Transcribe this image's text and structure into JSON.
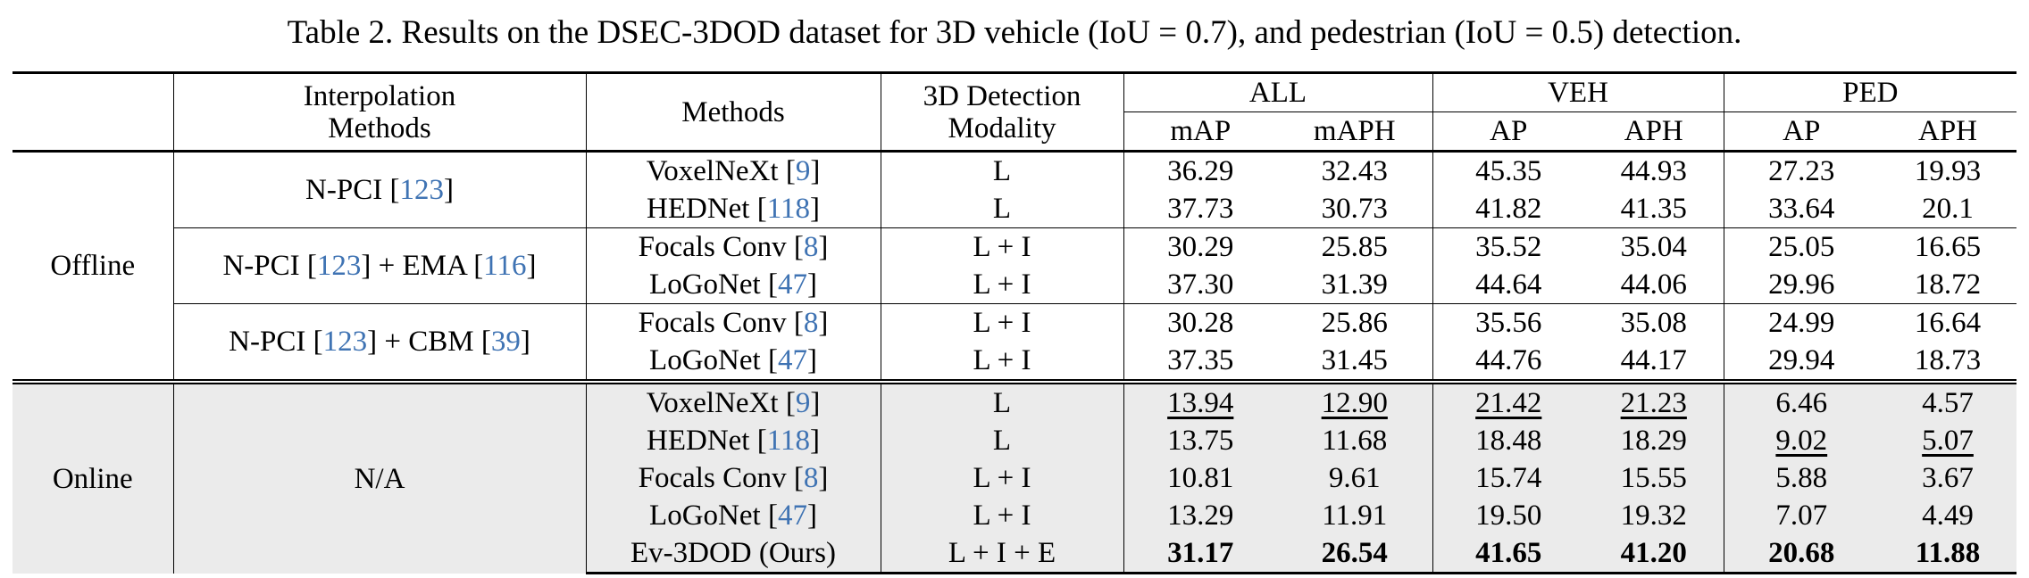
{
  "caption": "Table 2. Results on the DSEC-3DOD dataset for 3D vehicle (IoU = 0.7), and pedestrian (IoU = 0.5) detection.",
  "header": {
    "interp_line1": "Interpolation",
    "interp_line2": "Methods",
    "methods": "Methods",
    "modality_line1": "3D Detection",
    "modality_line2": "Modality",
    "all": "ALL",
    "veh": "VEH",
    "ped": "PED",
    "map": "mAP",
    "maph": "mAPH",
    "veh_ap": "AP",
    "veh_aph": "APH",
    "ped_ap": "AP",
    "ped_aph": "APH"
  },
  "offline": {
    "label": "Offline",
    "groups": [
      {
        "interp": "N-PCI",
        "interp_ref": "123",
        "rows": [
          {
            "method": "VoxelNeXt",
            "ref": "9",
            "modality": "L",
            "map": "36.29",
            "maph": "32.43",
            "veh_ap": "45.35",
            "veh_aph": "44.93",
            "ped_ap": "27.23",
            "ped_aph": "19.93"
          },
          {
            "method": "HEDNet",
            "ref": "118",
            "modality": "L",
            "map": "37.73",
            "maph": "30.73",
            "veh_ap": "41.82",
            "veh_aph": "41.35",
            "ped_ap": "33.64",
            "ped_aph": "20.1"
          }
        ]
      },
      {
        "interp": "N-PCI",
        "interp_ref": "123",
        "interp_plus": "+ EMA",
        "interp_ref2": "116",
        "rows": [
          {
            "method": "Focals Conv",
            "ref": "8",
            "modality": "L + I",
            "map": "30.29",
            "maph": "25.85",
            "veh_ap": "35.52",
            "veh_aph": "35.04",
            "ped_ap": "25.05",
            "ped_aph": "16.65"
          },
          {
            "method": "LoGoNet",
            "ref": "47",
            "modality": "L + I",
            "map": "37.30",
            "maph": "31.39",
            "veh_ap": "44.64",
            "veh_aph": "44.06",
            "ped_ap": "29.96",
            "ped_aph": "18.72"
          }
        ]
      },
      {
        "interp": "N-PCI",
        "interp_ref": "123",
        "interp_plus": "+ CBM",
        "interp_ref2": "39",
        "rows": [
          {
            "method": "Focals Conv",
            "ref": "8",
            "modality": "L + I",
            "map": "30.28",
            "maph": "25.86",
            "veh_ap": "35.56",
            "veh_aph": "35.08",
            "ped_ap": "24.99",
            "ped_aph": "16.64"
          },
          {
            "method": "LoGoNet",
            "ref": "47",
            "modality": "L + I",
            "map": "37.35",
            "maph": "31.45",
            "veh_ap": "44.76",
            "veh_aph": "44.17",
            "ped_ap": "29.94",
            "ped_aph": "18.73"
          }
        ]
      }
    ]
  },
  "online": {
    "label": "Online",
    "interp": "N/A",
    "rows": [
      {
        "method": "VoxelNeXt",
        "ref": "9",
        "modality": "L",
        "map": "13.94",
        "maph": "12.90",
        "veh_ap": "21.42",
        "veh_aph": "21.23",
        "ped_ap": "6.46",
        "ped_aph": "4.57"
      },
      {
        "method": "HEDNet",
        "ref": "118",
        "modality": "L",
        "map": "13.75",
        "maph": "11.68",
        "veh_ap": "18.48",
        "veh_aph": "18.29",
        "ped_ap": "9.02",
        "ped_aph": "5.07"
      },
      {
        "method": "Focals Conv",
        "ref": "8",
        "modality": "L + I",
        "map": "10.81",
        "maph": "9.61",
        "veh_ap": "15.74",
        "veh_aph": "15.55",
        "ped_ap": "5.88",
        "ped_aph": "3.67"
      },
      {
        "method": "LoGoNet",
        "ref": "47",
        "modality": "L + I",
        "map": "13.29",
        "maph": "11.91",
        "veh_ap": "19.50",
        "veh_aph": "19.32",
        "ped_ap": "7.07",
        "ped_aph": "4.49"
      },
      {
        "method": "Ev-3DOD (Ours)",
        "modality": "L + I + E",
        "map": "31.17",
        "maph": "26.54",
        "veh_ap": "41.65",
        "veh_aph": "41.20",
        "ped_ap": "20.68",
        "ped_aph": "11.88"
      }
    ]
  }
}
